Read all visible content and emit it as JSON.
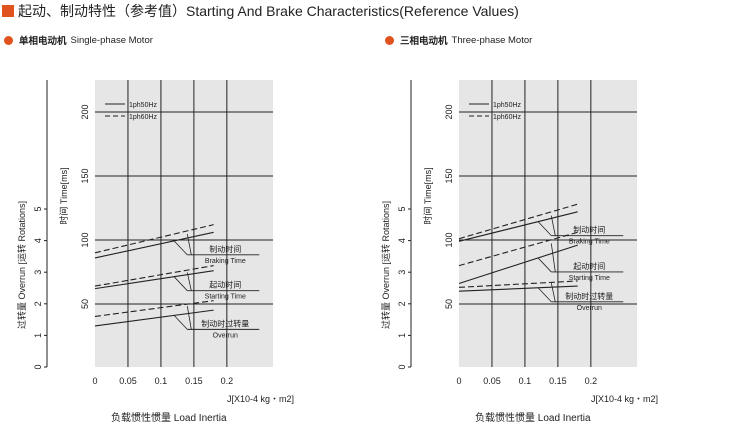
{
  "header": {
    "title": "起动、制动特性（参考值）Starting And Brake Characteristics(Reference Values)",
    "accent_color": "#e0521e"
  },
  "chart_data": [
    {
      "type": "line",
      "title": "单相电动机 Single-phase Motor",
      "title_cn": "单相电动机",
      "title_en": "Single-phase Motor",
      "xlabel": "负载惯性惯量 Load Inertia",
      "x_unit": "J[X10-4 kg・m2]",
      "ylabel_left": "过转量 Overrun [运转 Rotations]",
      "ylabel_right": "时间 Time[ms]",
      "xlim": [
        0,
        0.27
      ],
      "x_ticks": [
        0,
        0.05,
        0.1,
        0.15,
        0.2
      ],
      "y_time_ticks": [
        50,
        100,
        150,
        200
      ],
      "y_overrun_ticks": [
        0,
        1,
        2,
        3,
        4,
        5
      ],
      "legend": [
        "1ph50Hz",
        "1ph60Hz"
      ],
      "series": [
        {
          "name": "1ph50Hz",
          "group": "制动时间",
          "x": [
            0,
            0.18
          ],
          "y_ms": [
            86,
            106
          ]
        },
        {
          "name": "1ph60Hz",
          "group": "制动时间",
          "x": [
            0,
            0.18
          ],
          "y_ms": [
            90,
            112
          ]
        },
        {
          "name": "1ph50Hz",
          "group": "起动时间",
          "x": [
            0,
            0.18
          ],
          "y_ms": [
            62,
            76
          ]
        },
        {
          "name": "1ph60Hz",
          "group": "起动时间",
          "x": [
            0,
            0.18
          ],
          "y_ms": [
            64,
            80
          ]
        },
        {
          "name": "1ph50Hz",
          "group": "制动时过转量",
          "x": [
            0,
            0.18
          ],
          "y_overrun": [
            1.3,
            1.8
          ]
        },
        {
          "name": "1ph60Hz",
          "group": "制动时过转量",
          "x": [
            0,
            0.18
          ],
          "y_overrun": [
            1.6,
            2.1
          ]
        }
      ],
      "annotations": [
        {
          "cn": "制动时间",
          "en": "Braking Time"
        },
        {
          "cn": "起动时间",
          "en": "Starting Time"
        },
        {
          "cn": "制动时过转量",
          "en": "Overrun"
        }
      ]
    },
    {
      "type": "line",
      "title": "三相电动机 Three-phase Motor",
      "title_cn": "三相电动机",
      "title_en": "Three-phase Motor",
      "xlabel": "负载惯性惯量 Load Inertia",
      "x_unit": "J[X10-4 kg・m2]",
      "ylabel_left": "过转量 Overrun [运转 Rotations]",
      "ylabel_right": "时间 Time[ms]",
      "xlim": [
        0,
        0.27
      ],
      "x_ticks": [
        0,
        0.05,
        0.1,
        0.15,
        0.2
      ],
      "y_time_ticks": [
        50,
        100,
        150,
        200
      ],
      "y_overrun_ticks": [
        0,
        1,
        2,
        3,
        4,
        5
      ],
      "legend": [
        "1ph50Hz",
        "1ph60Hz"
      ],
      "series": [
        {
          "name": "1ph50Hz",
          "group": "制动时间",
          "x": [
            0,
            0.18
          ],
          "y_ms": [
            99,
            122
          ]
        },
        {
          "name": "1ph60Hz",
          "group": "制动时间",
          "x": [
            0,
            0.18
          ],
          "y_ms": [
            101,
            128
          ]
        },
        {
          "name": "1ph50Hz",
          "group": "起动时间",
          "x": [
            0,
            0.18
          ],
          "y_ms": [
            66,
            96
          ]
        },
        {
          "name": "1ph60Hz",
          "group": "起动时间",
          "x": [
            0,
            0.18
          ],
          "y_ms": [
            80,
            106
          ]
        },
        {
          "name": "1ph50Hz",
          "group": "制动时过转量",
          "x": [
            0,
            0.18
          ],
          "y_ms": [
            60,
            64
          ]
        },
        {
          "name": "1ph60Hz",
          "group": "制动时过转量",
          "x": [
            0,
            0.18
          ],
          "y_ms": [
            63,
            68
          ]
        }
      ],
      "annotations": [
        {
          "cn": "制动时间",
          "en": "Braking Time"
        },
        {
          "cn": "起动时间",
          "en": "Starting Time"
        },
        {
          "cn": "制动时过转量",
          "en": "Overrun"
        }
      ]
    }
  ]
}
